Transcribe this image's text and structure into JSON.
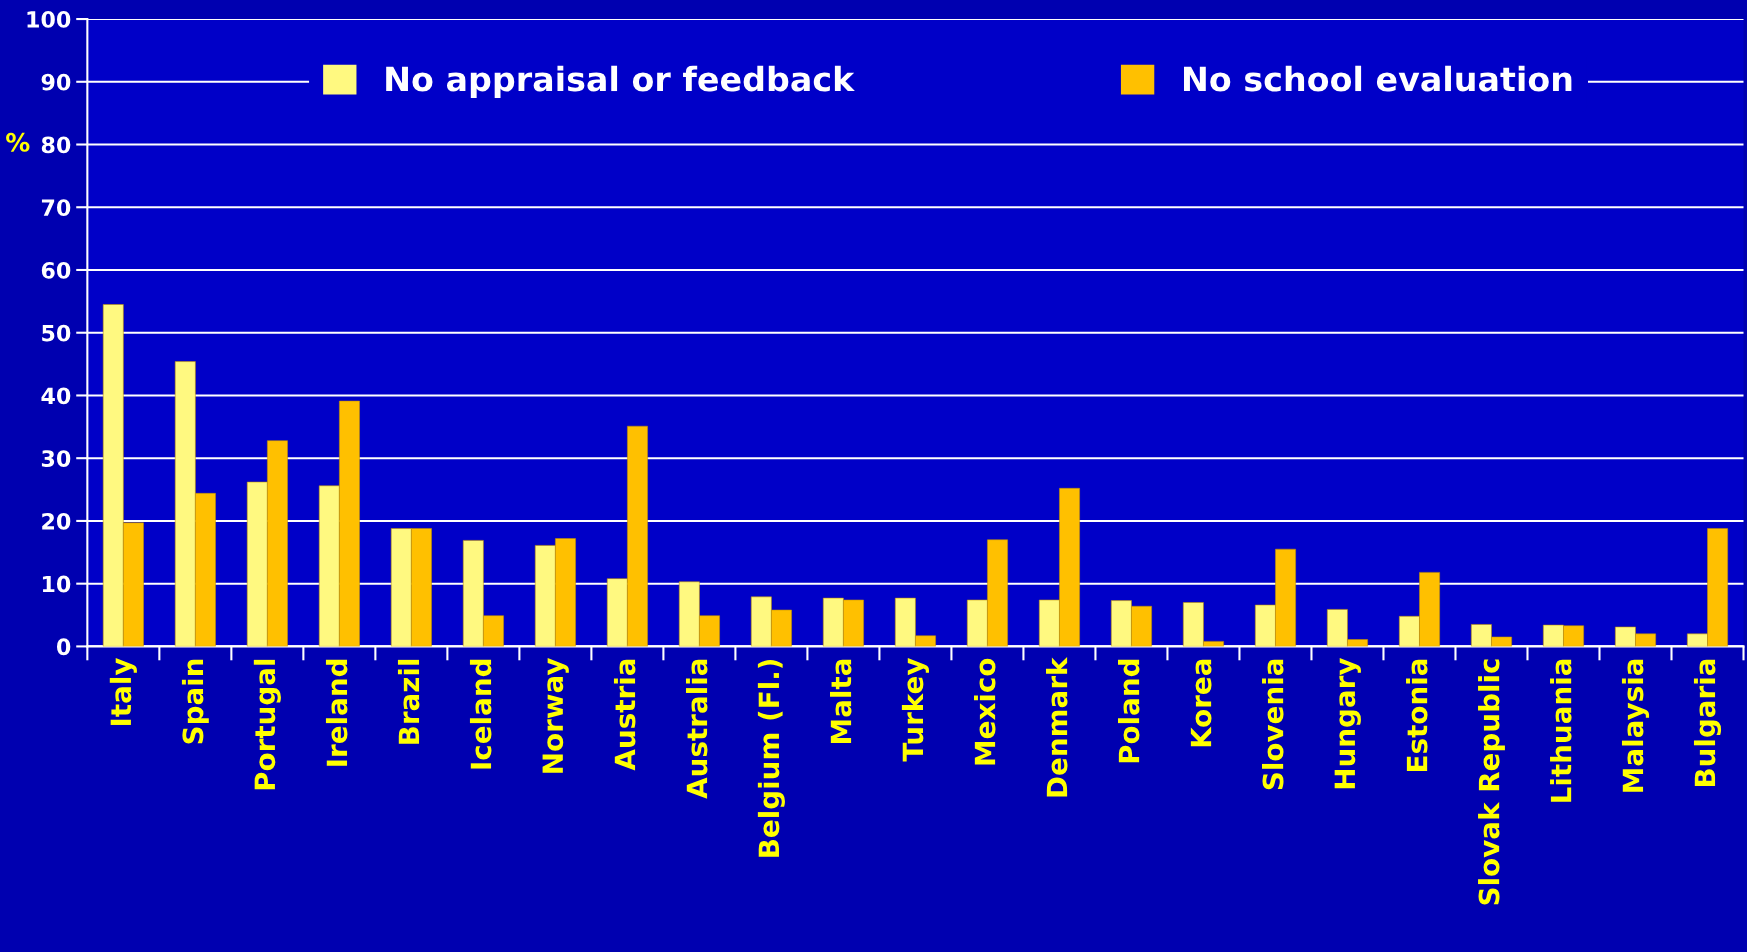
{
  "chart_data": {
    "type": "bar",
    "ylabel": "%",
    "categories": [
      "Italy",
      "Spain",
      "Portugal",
      "Ireland",
      "Brazil",
      "Iceland",
      "Norway",
      "Austria",
      "Australia",
      "Belgium (Fl.)",
      "Malta",
      "Turkey",
      "Mexico",
      "Denmark",
      "Poland",
      "Korea",
      "Slovenia",
      "Hungary",
      "Estonia",
      "Slovak Republic",
      "Lithuania",
      "Malaysia",
      "Bulgaria"
    ],
    "series": [
      {
        "name": "No appraisal or feedback",
        "color": "#fff980",
        "values": [
          54.5,
          45.4,
          26.2,
          25.6,
          18.8,
          16.9,
          16.1,
          10.8,
          10.3,
          7.9,
          7.7,
          7.7,
          7.4,
          7.4,
          7.3,
          7.0,
          6.6,
          5.9,
          4.8,
          3.5,
          3.4,
          3.1,
          2.0
        ]
      },
      {
        "name": "No school evaluation",
        "color": "#ffc000",
        "values": [
          19.7,
          24.4,
          32.8,
          39.1,
          18.8,
          4.9,
          17.2,
          35.1,
          4.9,
          5.8,
          7.4,
          1.7,
          17.0,
          25.2,
          6.4,
          0.8,
          15.5,
          1.1,
          11.8,
          1.5,
          3.3,
          2.0,
          18.8
        ]
      }
    ],
    "ylim": [
      0,
      100
    ],
    "yticks": [
      0,
      10,
      20,
      30,
      40,
      50,
      60,
      70,
      80,
      90,
      100
    ],
    "grid": "y",
    "legend": "top"
  }
}
